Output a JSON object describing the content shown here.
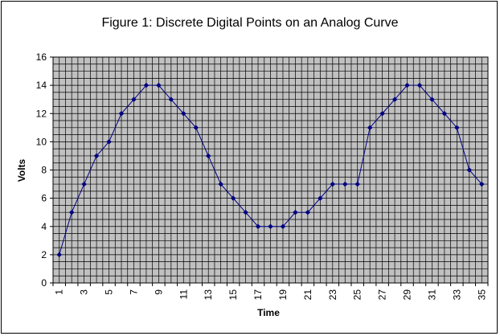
{
  "chart_data": {
    "type": "line",
    "title": "Figure 1: Discrete Digital Points on an Analog Curve",
    "xlabel": "Time",
    "ylabel": "Volts",
    "ylim": [
      0,
      16
    ],
    "y_ticks": [
      0,
      2,
      4,
      6,
      8,
      10,
      12,
      14,
      16
    ],
    "y_minor_step": 0.5,
    "x_categories": [
      1,
      2,
      3,
      4,
      5,
      6,
      7,
      8,
      9,
      10,
      11,
      12,
      13,
      14,
      15,
      16,
      17,
      18,
      19,
      20,
      21,
      22,
      23,
      24,
      25,
      26,
      27,
      28,
      29,
      30,
      31,
      32,
      33,
      34,
      35
    ],
    "x_tick_labels": [
      "1",
      "3",
      "5",
      "7",
      "9",
      "11",
      "13",
      "15",
      "17",
      "19",
      "21",
      "23",
      "25",
      "27",
      "29",
      "31",
      "33",
      "35"
    ],
    "x_vertical_gridlines_per_category": 2,
    "grid": true,
    "legend": "none",
    "series": [
      {
        "values": [
          2,
          5,
          7,
          9,
          10,
          12,
          13,
          14,
          14,
          13,
          12,
          11,
          9,
          7,
          6,
          5,
          4,
          4,
          4,
          5,
          5,
          6,
          7,
          7,
          7,
          11,
          12,
          13,
          14,
          14,
          13,
          12,
          11,
          8,
          7
        ],
        "color": "#000080",
        "marker": "diamond"
      }
    ],
    "colors": {
      "plot_background": "#c0c0c0",
      "grid": "#000000",
      "axis": "#000000"
    }
  }
}
